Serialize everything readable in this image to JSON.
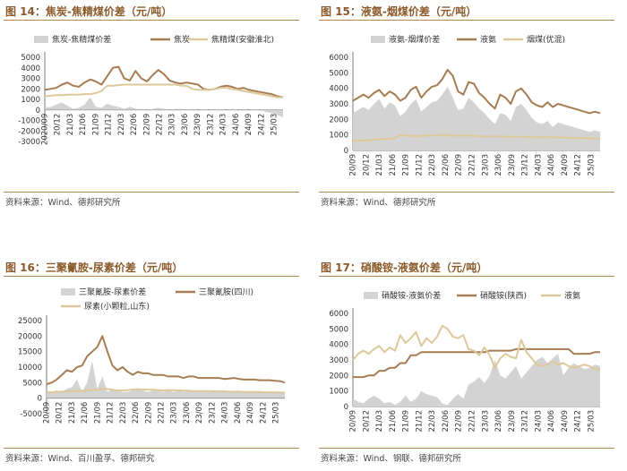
{
  "colors": {
    "area": "#d3d3d3",
    "dark": "#a67c52",
    "light": "#ddc89a",
    "title": "#8b5a2b"
  },
  "chart_data": [
    {
      "type": "line",
      "id": "c14",
      "title": "图 14：焦炭-焦精煤价差（元/吨）",
      "source": "资料来源：Wind、德邦研究所",
      "ylim": [
        -3000,
        5000
      ],
      "yticks": [
        -3000,
        -2000,
        -1000,
        0,
        1000,
        2000,
        3000,
        4000,
        5000
      ],
      "x_labels": [
        "2020/09",
        "20/12",
        "21/03",
        "21/06",
        "21/09",
        "21/12",
        "22/03",
        "22/06",
        "22/09",
        "22/12",
        "23/03",
        "23/06",
        "23/09",
        "23/12",
        "24/03",
        "24/06",
        "24/09",
        "24/12",
        "25/03"
      ],
      "series": [
        {
          "name": "焦炭-焦精煤价差",
          "kind": "area",
          "values": [
            300,
            250,
            500,
            700,
            400,
            100,
            200,
            500,
            1200,
            300,
            200,
            600,
            400,
            300,
            100,
            300,
            100,
            100,
            0,
            100,
            200,
            100,
            0,
            100,
            100,
            50,
            100,
            0,
            50,
            0,
            100,
            50,
            0,
            100,
            0,
            50,
            0,
            50,
            0,
            -200,
            -300,
            -500,
            -700
          ]
        },
        {
          "name": "焦炭",
          "kind": "line",
          "color": "dark",
          "values": [
            1900,
            2000,
            2100,
            2400,
            2600,
            2300,
            2200,
            2600,
            2900,
            2700,
            2400,
            3200,
            4000,
            4100,
            3000,
            2800,
            3700,
            3000,
            2700,
            3300,
            3800,
            3400,
            2800,
            2600,
            2500,
            2600,
            2500,
            2400,
            2000,
            1900,
            2000,
            2200,
            2300,
            2200,
            2000,
            2100,
            1900,
            1800,
            1700,
            1600,
            1500,
            1300,
            1200
          ]
        },
        {
          "name": "焦精煤(安徽淮北)",
          "kind": "line",
          "color": "light",
          "values": [
            1300,
            1350,
            1400,
            1400,
            1450,
            1450,
            1450,
            1500,
            1500,
            1600,
            1800,
            2300,
            2300,
            2350,
            2400,
            2400,
            2400,
            2400,
            2400,
            2400,
            2400,
            2400,
            2400,
            2400,
            2300,
            2300,
            2000,
            1900,
            1900,
            1900,
            2000,
            2100,
            2100,
            2000,
            1900,
            1800,
            1700,
            1600,
            1500,
            1400,
            1300,
            1200,
            1200
          ]
        }
      ]
    },
    {
      "type": "line",
      "id": "c15",
      "title": "图 15：液氨-烟煤价差（元/吨）",
      "source": "资料来源：Wind、德邦研究所",
      "ylim": [
        0,
        6000
      ],
      "yticks": [
        0,
        1000,
        2000,
        3000,
        4000,
        5000,
        6000
      ],
      "x_labels": [
        "20/09",
        "20/12",
        "21/03",
        "21/06",
        "21/09",
        "21/12",
        "22/03",
        "22/06",
        "22/09",
        "22/12",
        "23/03",
        "23/06",
        "23/09",
        "23/12",
        "24/03",
        "24/06",
        "24/09",
        "24/12",
        "25/03"
      ],
      "series": [
        {
          "name": "液氨-烟煤价差",
          "kind": "area",
          "values": [
            2400,
            2600,
            2800,
            2600,
            3000,
            3300,
            2700,
            3100,
            2900,
            2200,
            2500,
            3000,
            3300,
            2500,
            2800,
            3100,
            3200,
            3600,
            4100,
            3400,
            2600,
            2700,
            3400,
            3100,
            2700,
            2400,
            2000,
            1700,
            2400,
            2300,
            1900,
            2800,
            3000,
            2600,
            2100,
            1800,
            1700,
            1900,
            1500,
            1800,
            1700,
            1600,
            1500,
            1400,
            1300,
            1200,
            1300,
            1200
          ]
        },
        {
          "name": "液氨",
          "kind": "line",
          "color": "dark",
          "values": [
            3200,
            3400,
            3600,
            3400,
            3700,
            3900,
            3500,
            3800,
            3600,
            3200,
            3400,
            3900,
            4100,
            3400,
            3800,
            4100,
            4200,
            4600,
            5200,
            4800,
            3800,
            3600,
            4400,
            4300,
            3700,
            3400,
            3000,
            2700,
            3600,
            3400,
            3000,
            3800,
            4000,
            3600,
            3100,
            2900,
            2800,
            3100,
            2800,
            3000,
            2900,
            2800,
            2700,
            2600,
            2500,
            2400,
            2500,
            2400
          ]
        },
        {
          "name": "烟煤(优混)",
          "kind": "line",
          "color": "light",
          "values": [
            600,
            620,
            650,
            650,
            700,
            700,
            750,
            750,
            800,
            1000,
            950,
            950,
            900,
            950,
            950,
            950,
            1000,
            1000,
            1000,
            950,
            950,
            950,
            950,
            950,
            900,
            900,
            900,
            900,
            900,
            880,
            880,
            880,
            880,
            860,
            860,
            850,
            850,
            850,
            840,
            840,
            830,
            820,
            810,
            800,
            790,
            780,
            770,
            760
          ]
        }
      ]
    },
    {
      "type": "line",
      "id": "c16",
      "title": "图 16：三聚氰胺-尿素价差（元/吨）",
      "source": "资料来源：Wind、百川盈孚、德邦研究",
      "ylim": [
        -5000,
        25000
      ],
      "yticks": [
        -5000,
        0,
        5000,
        10000,
        15000,
        20000,
        25000
      ],
      "x_labels": [
        "20/09",
        "20/12",
        "21/03",
        "21/06",
        "21/09",
        "21/12",
        "22/03",
        "22/06",
        "22/09",
        "22/12",
        "23/03",
        "23/06",
        "23/09",
        "23/12",
        "24/03",
        "24/06",
        "24/09",
        "24/12",
        "25/03"
      ],
      "series": [
        {
          "name": "三聚氰胺-尿素价差",
          "kind": "area",
          "values": [
            1500,
            2000,
            2500,
            2000,
            3000,
            3500,
            6000,
            2000,
            5000,
            12000,
            3000,
            7000,
            2000,
            3000,
            2500,
            2000,
            2000,
            2500,
            3000,
            2500,
            2000,
            2500,
            2500,
            2000,
            2500,
            2000,
            2500,
            2000,
            2500,
            2200,
            2000,
            2200,
            2000,
            2000,
            2200,
            2000,
            2000,
            2000,
            2100,
            2000,
            2000,
            2000,
            1800,
            2000,
            2000,
            1800,
            1800,
            1500
          ]
        },
        {
          "name": "三聚氰胺(四川)",
          "kind": "line",
          "color": "dark",
          "values": [
            4500,
            5000,
            6000,
            7500,
            9000,
            8500,
            10000,
            10500,
            13500,
            15000,
            16500,
            20000,
            15000,
            10500,
            9000,
            10000,
            8500,
            7500,
            8500,
            8000,
            8000,
            7500,
            7500,
            7500,
            7000,
            7000,
            7000,
            6500,
            7000,
            7000,
            6500,
            6500,
            6500,
            6500,
            6500,
            6200,
            6300,
            6500,
            6200,
            6000,
            6000,
            6000,
            5800,
            5800,
            5800,
            5600,
            5500,
            5000
          ]
        },
        {
          "name": "尿素(小颗粒,山东)",
          "kind": "line",
          "color": "light",
          "values": [
            1900,
            1900,
            2000,
            2100,
            2200,
            2300,
            2300,
            2400,
            2400,
            2600,
            2700,
            3000,
            3000,
            2700,
            2500,
            2500,
            2600,
            2800,
            2900,
            2800,
            2700,
            2700,
            2600,
            2500,
            2600,
            2600,
            2500,
            2400,
            2400,
            2300,
            2300,
            2300,
            2300,
            2200,
            2200,
            2200,
            2100,
            2100,
            2100,
            2000,
            2000,
            2000,
            2000,
            1900,
            1900,
            1900,
            1800,
            1800
          ]
        }
      ]
    },
    {
      "type": "line",
      "id": "c17",
      "title": "图 17：硝酸铵-液氨价差（元/吨）",
      "source": "资料来源：Wind、钢联、德邦研究所",
      "ylim": [
        0,
        6000
      ],
      "yticks": [
        0,
        1000,
        2000,
        3000,
        4000,
        5000,
        6000
      ],
      "x_labels": [
        "20/09",
        "20/12",
        "21/03",
        "21/06",
        "21/09",
        "21/12",
        "22/03",
        "22/06",
        "22/09",
        "22/12",
        "23/03",
        "23/06",
        "23/09",
        "23/12",
        "24/03",
        "24/06",
        "24/09",
        "24/12",
        "25/03"
      ],
      "series": [
        {
          "name": "硝酸铵-液氨价差",
          "kind": "area",
          "values": [
            500,
            300,
            200,
            500,
            700,
            500,
            200,
            300,
            100,
            300,
            700,
            300,
            500,
            1000,
            800,
            700,
            600,
            200,
            100,
            500,
            800,
            500,
            1400,
            1600,
            1900,
            1500,
            2000,
            3000,
            2000,
            1800,
            2200,
            2600,
            1800,
            2200,
            2600,
            3000,
            3200,
            2800,
            3100,
            3400,
            2000,
            2500,
            2800,
            2600,
            2400,
            2500,
            2700,
            2600
          ]
        },
        {
          "name": "硝酸铵(陕西)",
          "kind": "line",
          "color": "dark",
          "values": [
            1900,
            1900,
            1900,
            2000,
            2000,
            2300,
            2300,
            2500,
            2500,
            2800,
            2800,
            3300,
            3300,
            3500,
            3500,
            3500,
            3500,
            3500,
            3500,
            3500,
            3500,
            3500,
            3500,
            3500,
            3500,
            3500,
            3600,
            3600,
            3600,
            3600,
            3600,
            3700,
            3700,
            3700,
            3700,
            3700,
            3700,
            3700,
            3700,
            3700,
            3700,
            3700,
            3400,
            3400,
            3400,
            3400,
            3500,
            3500
          ]
        },
        {
          "name": "液氨",
          "kind": "line",
          "color": "light",
          "values": [
            3000,
            3400,
            3600,
            3400,
            3700,
            3900,
            3500,
            3800,
            3600,
            4600,
            4100,
            4400,
            4800,
            3900,
            4400,
            4100,
            4500,
            5200,
            5000,
            4500,
            4400,
            4600,
            3700,
            3600,
            3300,
            3800,
            3300,
            2500,
            3100,
            3400,
            3200,
            3100,
            4300,
            3500,
            3100,
            2700,
            2600,
            2700,
            2900,
            2700,
            2800,
            2600,
            2500,
            2600,
            2700,
            2600,
            2400,
            2400
          ]
        }
      ]
    }
  ]
}
